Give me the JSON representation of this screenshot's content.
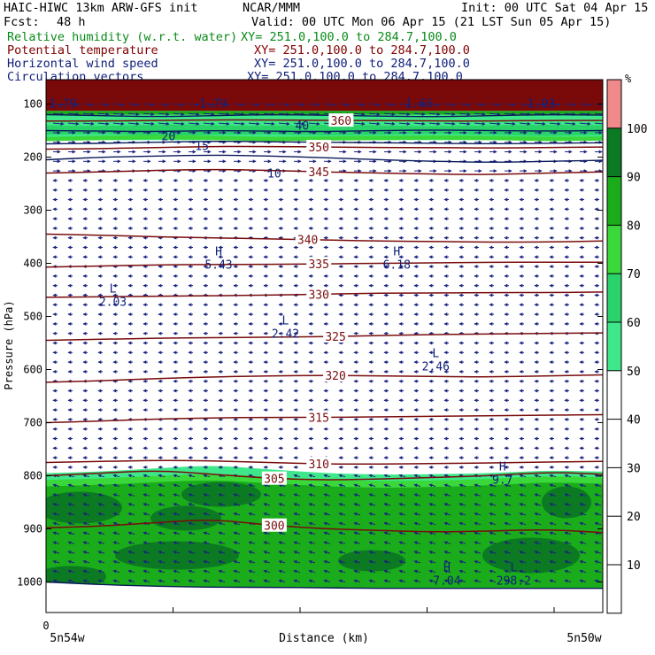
{
  "header": {
    "model": "HAIC-HIWC 13km ARW-GFS init",
    "org": "NCAR/MMM",
    "init": "Init: 00 UTC Sat 04 Apr 15",
    "fcst_label": "Fcst:",
    "fcst_value": "48 h",
    "valid": "Valid: 00 UTC Mon 06 Apr 15 (21 LST Sun 05 Apr 15)",
    "fields": [
      {
        "name": "Relative humidity (w.r.t. water)",
        "xy": "XY= 251.0,100.0 to 284.7,100.0",
        "color": "#0a8a1a"
      },
      {
        "name": "Potential temperature",
        "xy": "XY= 251.0,100.0 to 284.7,100.0",
        "color": "#800000"
      },
      {
        "name": "Horizontal wind speed",
        "xy": "XY= 251.0,100.0 to 284.7,100.0",
        "color": "#10207a"
      },
      {
        "name": "Circulation vectors",
        "xy": "XY= 251.0,100.0 to 284.7,100.0",
        "color": "#10207a"
      }
    ]
  },
  "chart_data": {
    "type": "cross-section",
    "xlabel": "Distance (km)",
    "ylabel": "Pressure (hPa)",
    "x_start_tick": "0",
    "x_left_label": "5n54w",
    "x_right_label": "5n50w",
    "y_ticks": [
      100,
      200,
      300,
      400,
      500,
      600,
      700,
      800,
      900,
      1000
    ],
    "ylim": [
      50,
      1050
    ],
    "colorbar": {
      "unit": "%",
      "ticks": [
        10,
        20,
        30,
        40,
        50,
        60,
        70,
        80,
        90,
        100
      ],
      "bands": [
        {
          "from": 50,
          "to": 60,
          "color": "#3ee88a"
        },
        {
          "from": 60,
          "to": 70,
          "color": "#2ad26a"
        },
        {
          "from": 70,
          "to": 80,
          "color": "#3ad83a"
        },
        {
          "from": 80,
          "to": 90,
          "color": "#1aac1a"
        },
        {
          "from": 90,
          "to": 100,
          "color": "#0b7a22"
        },
        {
          "from": 100,
          "to": 110,
          "color": "#f08a8a"
        }
      ]
    },
    "theta_contours": [
      {
        "value": 300,
        "label": "300",
        "levels": [
          898,
          895,
          888,
          882,
          893,
          900,
          903,
          906,
          904,
          901,
          907
        ]
      },
      {
        "value": 305,
        "label": "305",
        "levels": [
          800,
          795,
          790,
          797,
          805,
          808,
          806,
          803,
          800,
          793,
          797
        ]
      },
      {
        "value": 310,
        "label": "310",
        "levels": [
          775,
          773,
          771,
          772,
          775,
          778,
          778,
          777,
          776,
          774,
          773
        ]
      },
      {
        "value": 315,
        "label": "315",
        "levels": [
          700,
          697,
          693,
          691,
          690,
          690,
          689,
          688,
          687,
          686,
          685
        ]
      },
      {
        "value": 320,
        "label": "320",
        "levels": [
          624,
          621,
          617,
          614,
          612,
          611,
          612,
          613,
          614,
          612,
          610
        ]
      },
      {
        "value": 325,
        "label": "325",
        "levels": [
          545,
          543,
          541,
          540,
          539,
          538,
          536,
          534,
          533,
          532,
          531
        ]
      },
      {
        "value": 330,
        "label": "330",
        "levels": [
          464,
          463,
          462,
          461,
          460,
          458,
          456,
          456,
          455,
          455,
          454
        ]
      },
      {
        "value": 335,
        "label": "335",
        "levels": [
          407,
          405,
          403,
          402,
          402,
          401,
          400,
          399,
          398,
          398,
          398
        ]
      },
      {
        "value": 340,
        "label": "340",
        "levels": [
          345,
          347,
          350,
          352,
          354,
          356,
          358,
          359,
          360,
          360,
          358
        ]
      },
      {
        "value": 345,
        "label": "345",
        "levels": [
          230,
          228,
          225,
          223,
          225,
          228,
          230,
          232,
          233,
          230,
          228
        ]
      },
      {
        "value": 350,
        "label": "350",
        "levels": [
          185,
          184,
          182,
          180,
          180,
          181,
          182,
          182,
          183,
          182,
          181
        ]
      },
      {
        "value": 360,
        "label": "360",
        "levels": [
          132,
          132,
          131,
          130,
          130,
          131,
          131,
          132,
          132,
          131,
          131
        ]
      }
    ],
    "wind_contour_labels": [
      {
        "label": "10",
        "level": 230,
        "x_frac": 0.41
      },
      {
        "label": "15",
        "level": 178,
        "x_frac": 0.28
      },
      {
        "label": "20",
        "level": 160,
        "x_frac": 0.22
      },
      {
        "label": "40",
        "level": 140,
        "x_frac": 0.46
      },
      {
        "label": "1.79",
        "level": 98,
        "x_frac": 0.03
      },
      {
        "label": "1.79",
        "level": 98,
        "x_frac": 0.3
      },
      {
        "label": "1.66",
        "level": 98,
        "x_frac": 0.67
      },
      {
        "label": "1.93",
        "level": 98,
        "x_frac": 0.89
      }
    ],
    "extrema": [
      {
        "type": "H",
        "value": "5.43",
        "level": 395,
        "x_frac": 0.31
      },
      {
        "type": "H",
        "value": "6.18",
        "level": 395,
        "x_frac": 0.63
      },
      {
        "type": "L",
        "value": "2.03",
        "level": 465,
        "x_frac": 0.12
      },
      {
        "type": "L",
        "value": "2.42",
        "level": 525,
        "x_frac": 0.43
      },
      {
        "type": "L",
        "value": "2.46",
        "level": 587,
        "x_frac": 0.7
      },
      {
        "type": "H",
        "value": "9.7",
        "level": 800,
        "x_frac": 0.82
      },
      {
        "type": "H",
        "value": "7.04",
        "level": 990,
        "x_frac": 0.72
      },
      {
        "type": "L",
        "value": "298.2",
        "level": 990,
        "x_frac": 0.84
      }
    ]
  }
}
